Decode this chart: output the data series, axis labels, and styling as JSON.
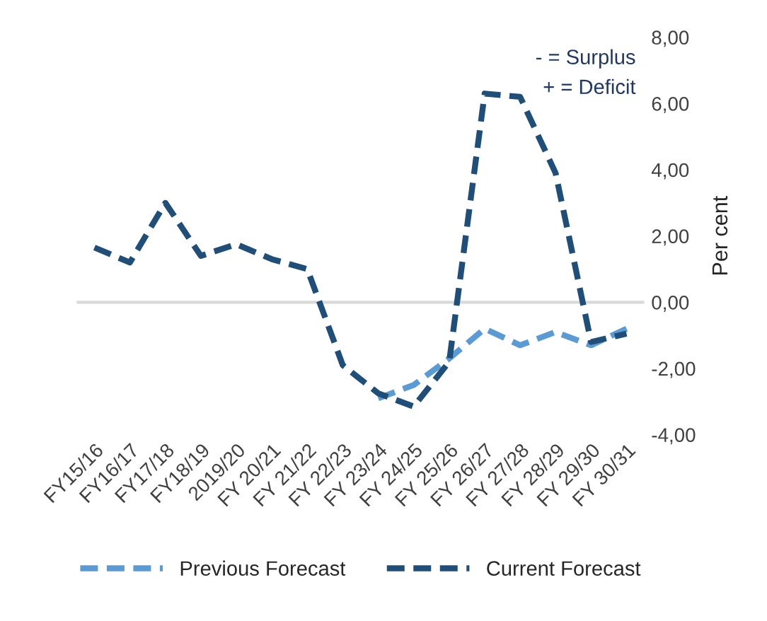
{
  "chart_data": {
    "type": "line",
    "categories": [
      "FY15/16",
      "FY16/17",
      "FY17/18",
      "FY18/19",
      "2019/20",
      "FY 20/21",
      "FY 21/22",
      "FY 22/23",
      "FY 23/24",
      "FY 24/25",
      "FY 25/26",
      "FY 26/27",
      "FY 27/28",
      "FY 28/29",
      "FY 29/30",
      "FY 30/31"
    ],
    "series": [
      {
        "name": "Previous Forecast",
        "color": "#5b9bd5",
        "values": [
          null,
          null,
          null,
          null,
          null,
          null,
          null,
          null,
          -2.9,
          -2.5,
          -1.7,
          -0.8,
          -1.3,
          -0.9,
          -1.3,
          -0.8
        ]
      },
      {
        "name": "Current Forecast",
        "color": "#1f4e79",
        "values": [
          1.65,
          1.2,
          3.0,
          1.4,
          1.75,
          1.3,
          1.0,
          -1.9,
          -2.75,
          -3.15,
          -1.8,
          6.3,
          6.2,
          3.9,
          -1.2,
          -0.95
        ]
      }
    ],
    "ylabel": "Per cent",
    "ylim": [
      -4,
      8
    ],
    "yticks": [
      {
        "value": -4,
        "label": "-4,00"
      },
      {
        "value": -2,
        "label": "-2,00"
      },
      {
        "value": 0,
        "label": "0,00"
      },
      {
        "value": 2,
        "label": "2,00"
      },
      {
        "value": 4,
        "label": "4,00"
      },
      {
        "value": 6,
        "label": "6,00"
      },
      {
        "value": 8,
        "label": "8,00"
      }
    ],
    "annotations": [
      "- = Surplus",
      "+ = Deficit"
    ],
    "line_style": "dashed",
    "marker": "none",
    "ref_lines": [
      {
        "axis": "y",
        "value": 0,
        "color": "#d9d9d9"
      }
    ],
    "legend": "bottom"
  }
}
